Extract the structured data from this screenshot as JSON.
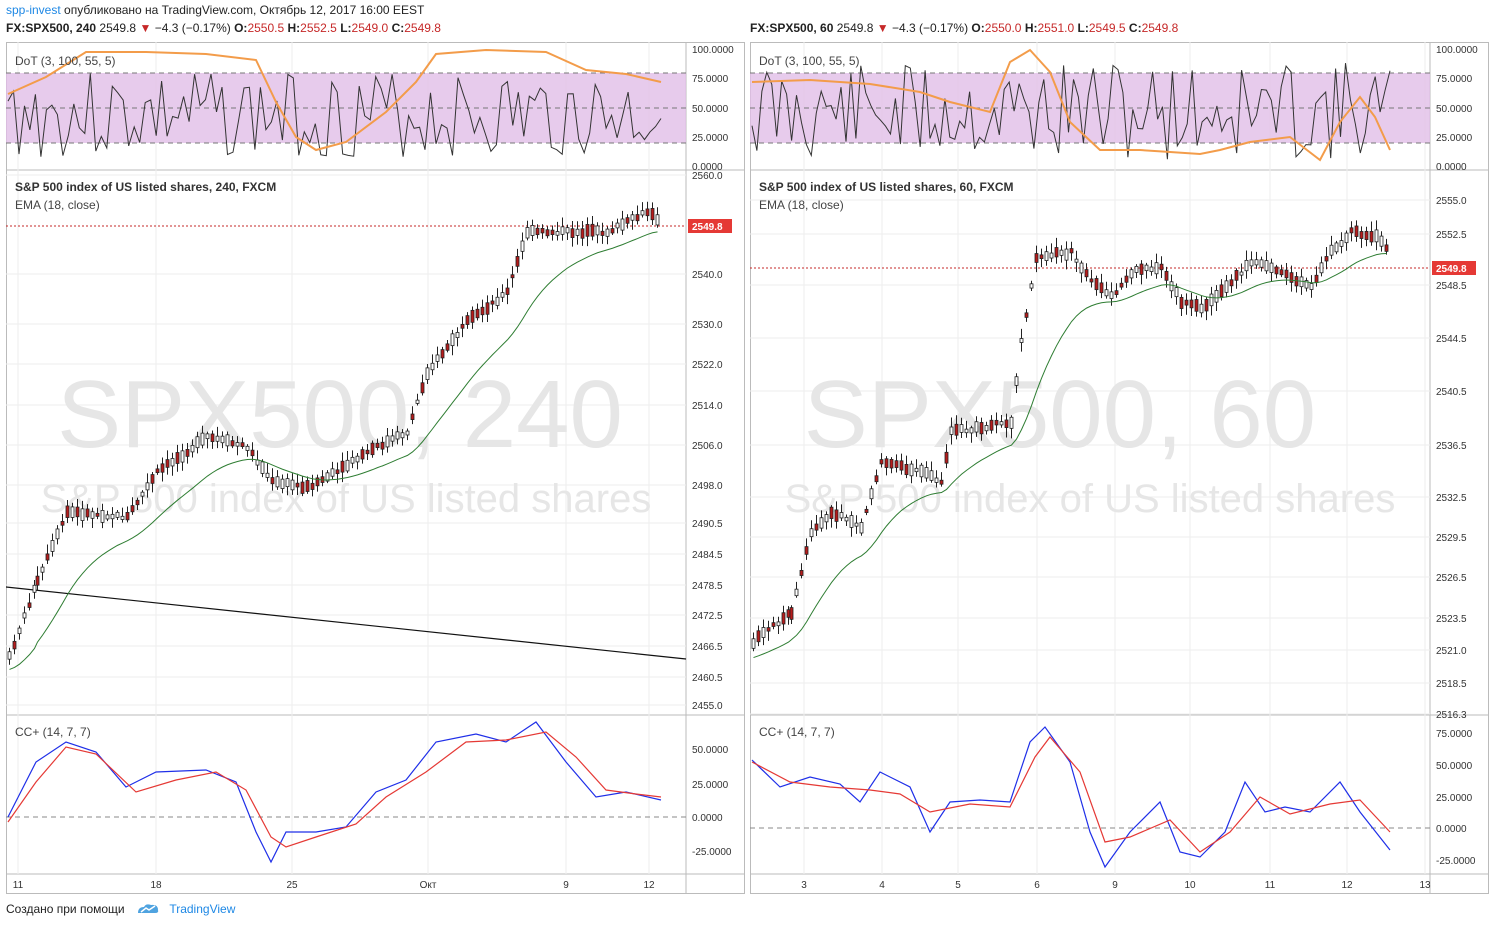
{
  "header": {
    "user": "spp-invest",
    "published": "опубликовано на TradingView.com, Октябрь 12, 2017 16:00 EEST"
  },
  "left": {
    "symbol": "FX:SPX500, 240",
    "last": "2549.8",
    "change": "−4.3 (−0.17%)",
    "o_label": "O:",
    "o": "2550.5",
    "h_label": "H:",
    "h": "2552.5",
    "l_label": "L:",
    "l": "2549.0",
    "c_label": "C:",
    "c": "2549.8",
    "dot_label": "DoT (3, 100, 55, 5)",
    "dot_ticks": [
      "100.0000",
      "75.0000",
      "50.0000",
      "25.0000",
      "0.0000"
    ],
    "main_title": "S&P 500 index of US listed shares, 240, FXCM",
    "ema_label": "EMA (18, close)",
    "watermark_big": "SPX500, 240",
    "watermark_small": "S&P 500 index of US listed shares",
    "price_ticks": [
      "2560.0",
      "2540.0",
      "2530.0",
      "2522.0",
      "2514.0",
      "2506.0",
      "2498.0",
      "2490.5",
      "2484.5",
      "2478.5",
      "2472.5",
      "2466.5",
      "2460.5",
      "2455.0"
    ],
    "price_badge": "2549.8",
    "cc_label": "CC+ (14, 7, 7)",
    "cc_ticks": [
      "50.0000",
      "25.0000",
      "0.0000",
      "-25.0000"
    ],
    "x_ticks": [
      "11",
      "18",
      "25",
      "Окт",
      "9",
      "12"
    ]
  },
  "right": {
    "symbol": "FX:SPX500, 60",
    "last": "2549.8",
    "change": "−4.3 (−0.17%)",
    "o_label": "O:",
    "o": "2550.0",
    "h_label": "H:",
    "h": "2551.0",
    "l_label": "L:",
    "l": "2549.5",
    "c_label": "C:",
    "c": "2549.8",
    "dot_label": "DoT (3, 100, 55, 5)",
    "dot_ticks": [
      "100.0000",
      "75.0000",
      "50.0000",
      "25.0000",
      "0.0000"
    ],
    "main_title": "S&P 500 index of US listed shares, 60, FXCM",
    "ema_label": "EMA (18, close)",
    "watermark_big": "SPX500, 60",
    "watermark_small": "S&P 500 index of US listed shares",
    "price_ticks": [
      "2555.0",
      "2552.5",
      "2548.5",
      "2544.5",
      "2540.5",
      "2536.5",
      "2532.5",
      "2529.5",
      "2526.5",
      "2523.5",
      "2521.0",
      "2518.5",
      "2516.3"
    ],
    "price_badge": "2549.8",
    "cc_label": "CC+ (14, 7, 7)",
    "cc_ticks": [
      "75.0000",
      "50.0000",
      "25.0000",
      "0.0000",
      "-25.0000"
    ],
    "x_ticks": [
      "3",
      "4",
      "5",
      "6",
      "9",
      "10",
      "11",
      "12",
      "13"
    ]
  },
  "footer": {
    "created": "Создано при помощи",
    "brand": "TradingView"
  },
  "colors": {
    "up": "#ffffff",
    "down": "#b71c1c",
    "ema": "#2e7d32",
    "dot_band": "#e1bee7",
    "dot_line": "#333333",
    "dot_orange": "#f39c4a",
    "cc_blue": "#1f2fe8",
    "cc_red": "#e53935",
    "badge": "#e53935",
    "grid": "#eeeeee"
  }
}
